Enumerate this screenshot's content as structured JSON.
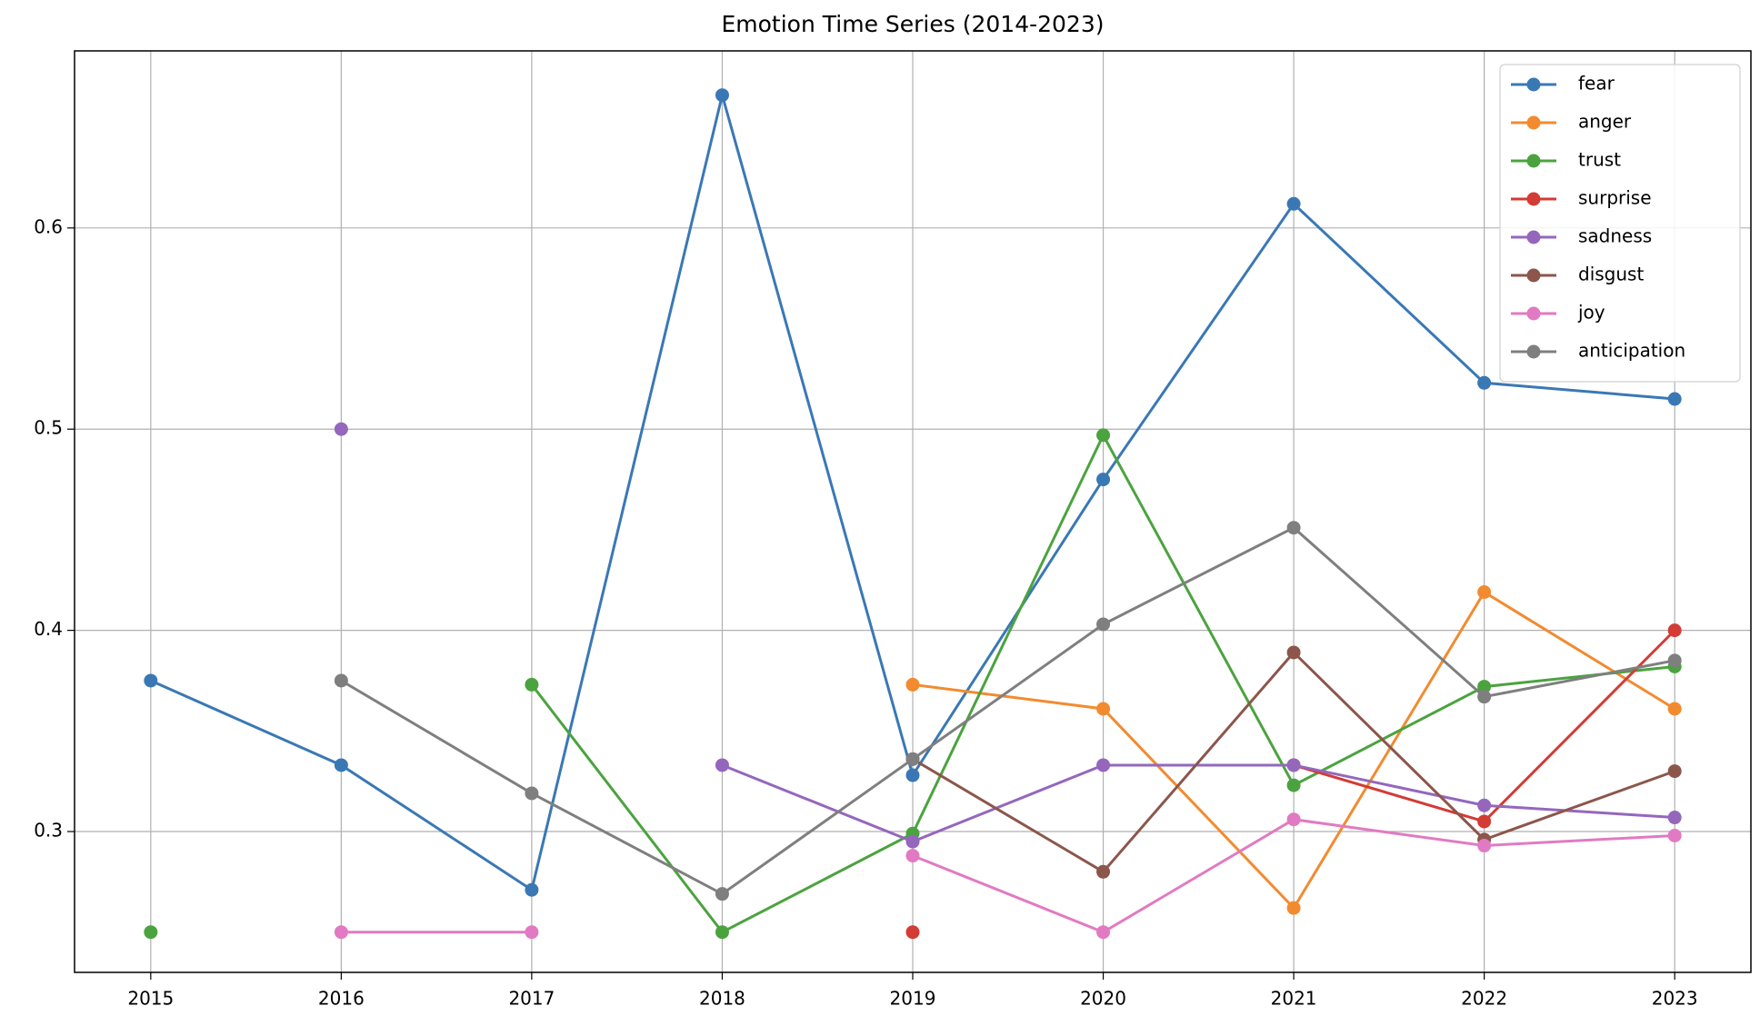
{
  "chart_data": {
    "type": "line",
    "title": "Emotion Time Series (2014-2023)",
    "x": [
      2015,
      2016,
      2017,
      2018,
      2019,
      2020,
      2021,
      2022,
      2023
    ],
    "xlim": [
      2014.6,
      2023.4
    ],
    "xticks": [
      2015,
      2016,
      2017,
      2018,
      2019,
      2020,
      2021,
      2022,
      2023
    ],
    "ylim": [
      0.23,
      0.688
    ],
    "yticks": [
      0.3,
      0.4,
      0.5,
      0.6
    ],
    "grid": true,
    "legend": "upper right",
    "series": [
      {
        "name": "fear",
        "color": "#3a78b5",
        "values": [
          0.375,
          0.333,
          0.271,
          0.666,
          0.328,
          0.475,
          0.612,
          0.523,
          0.515
        ]
      },
      {
        "name": "anger",
        "color": "#f28b30",
        "values": [
          null,
          null,
          null,
          null,
          0.373,
          0.361,
          0.262,
          0.419,
          0.361
        ]
      },
      {
        "name": "trust",
        "color": "#4ba33f",
        "values": [
          0.25,
          null,
          0.373,
          0.25,
          0.299,
          0.497,
          0.323,
          0.372,
          0.382
        ]
      },
      {
        "name": "surprise",
        "color": "#d33b35",
        "values": [
          null,
          null,
          null,
          null,
          0.25,
          null,
          0.333,
          0.305,
          0.4
        ]
      },
      {
        "name": "sadness",
        "color": "#9467bd",
        "values": [
          null,
          0.5,
          null,
          0.333,
          0.295,
          0.333,
          0.333,
          0.313,
          0.307
        ]
      },
      {
        "name": "disgust",
        "color": "#8c564b",
        "values": [
          null,
          null,
          null,
          null,
          0.336,
          0.28,
          0.389,
          0.296,
          0.33
        ]
      },
      {
        "name": "joy",
        "color": "#e17ac2",
        "values": [
          null,
          0.25,
          0.25,
          null,
          0.288,
          0.25,
          0.306,
          0.293,
          0.298
        ]
      },
      {
        "name": "anticipation",
        "color": "#7f7f7f",
        "values": [
          null,
          0.375,
          0.319,
          0.269,
          0.336,
          0.403,
          0.451,
          0.367,
          0.385
        ]
      }
    ]
  }
}
